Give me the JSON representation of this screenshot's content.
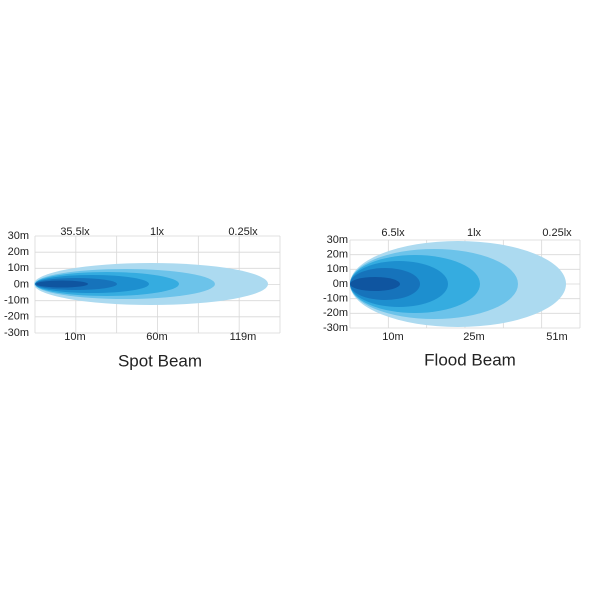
{
  "spot": {
    "title": "Spot Beam",
    "y_labels": [
      "30m",
      "20m",
      "10m",
      "0m",
      "-10m",
      "-20m",
      "-30m"
    ],
    "top_labels": [
      "35.5lx",
      "1lx",
      "0.25lx"
    ],
    "bottom_labels": [
      "10m",
      "60m",
      "119m"
    ]
  },
  "flood": {
    "title": "Flood Beam",
    "y_labels": [
      "30m",
      "20m",
      "10m",
      "0m",
      "-10m",
      "-20m",
      "-30m"
    ],
    "top_labels": [
      "6.5lx",
      "1lx",
      "0.25lx"
    ],
    "bottom_labels": [
      "10m",
      "25m",
      "51m"
    ]
  }
}
